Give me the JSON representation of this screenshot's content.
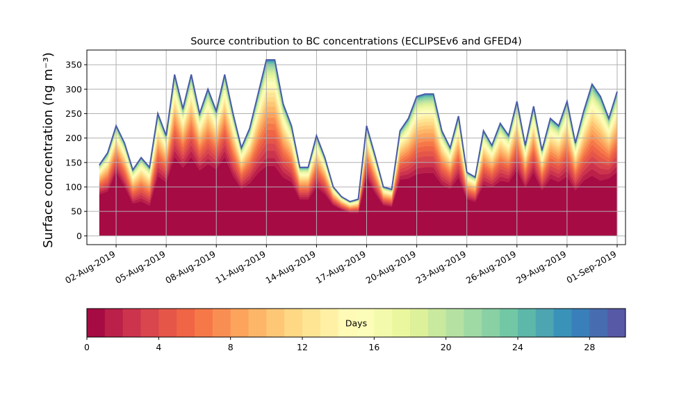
{
  "chart_data": {
    "type": "area",
    "stacked": true,
    "title": "Source contribution to BC concentrations (ECLIPSEv6 and GFED4)",
    "ylabel": "Surface concentration (ng m⁻³)",
    "xlabel": "",
    "ylim": [
      -18,
      380
    ],
    "yticks": [
      0,
      50,
      100,
      150,
      200,
      250,
      300,
      350
    ],
    "xlim": [
      "2019-07-31T06:00",
      "2019-09-01T12:00"
    ],
    "xticks": [
      "2019-08-02",
      "2019-08-05",
      "2019-08-08",
      "2019-08-11",
      "2019-08-14",
      "2019-08-17",
      "2019-08-20",
      "2019-08-23",
      "2019-08-26",
      "2019-08-29",
      "2019-09-01"
    ],
    "xtick_labels": [
      "02-Aug-2019",
      "05-Aug-2019",
      "08-Aug-2019",
      "11-Aug-2019",
      "14-Aug-2019",
      "17-Aug-2019",
      "20-Aug-2019",
      "23-Aug-2019",
      "26-Aug-2019",
      "29-Aug-2019",
      "01-Sep-2019"
    ],
    "grid": true,
    "x": [
      "2019-08-01T00:00",
      "2019-08-01T12:00",
      "2019-08-02T00:00",
      "2019-08-02T12:00",
      "2019-08-03T00:00",
      "2019-08-03T12:00",
      "2019-08-04T00:00",
      "2019-08-04T12:00",
      "2019-08-05T00:00",
      "2019-08-05T12:00",
      "2019-08-06T00:00",
      "2019-08-06T12:00",
      "2019-08-07T00:00",
      "2019-08-07T12:00",
      "2019-08-08T00:00",
      "2019-08-08T12:00",
      "2019-08-09T00:00",
      "2019-08-09T12:00",
      "2019-08-10T00:00",
      "2019-08-10T12:00",
      "2019-08-11T00:00",
      "2019-08-11T12:00",
      "2019-08-12T00:00",
      "2019-08-12T12:00",
      "2019-08-13T00:00",
      "2019-08-13T12:00",
      "2019-08-14T00:00",
      "2019-08-14T12:00",
      "2019-08-15T00:00",
      "2019-08-15T12:00",
      "2019-08-16T00:00",
      "2019-08-16T12:00",
      "2019-08-17T00:00",
      "2019-08-17T12:00",
      "2019-08-18T00:00",
      "2019-08-18T12:00",
      "2019-08-19T00:00",
      "2019-08-19T12:00",
      "2019-08-20T00:00",
      "2019-08-20T12:00",
      "2019-08-21T00:00",
      "2019-08-21T12:00",
      "2019-08-22T00:00",
      "2019-08-22T12:00",
      "2019-08-23T00:00",
      "2019-08-23T12:00",
      "2019-08-24T00:00",
      "2019-08-24T12:00",
      "2019-08-25T00:00",
      "2019-08-25T12:00",
      "2019-08-26T00:00",
      "2019-08-26T12:00",
      "2019-08-27T00:00",
      "2019-08-27T12:00",
      "2019-08-28T00:00",
      "2019-08-28T12:00",
      "2019-08-29T00:00",
      "2019-08-29T12:00",
      "2019-08-30T00:00",
      "2019-08-30T12:00",
      "2019-08-31T00:00",
      "2019-08-31T12:00",
      "2019-09-01T00:00"
    ],
    "total": [
      145,
      170,
      225,
      190,
      135,
      160,
      140,
      250,
      205,
      330,
      260,
      330,
      250,
      300,
      255,
      330,
      250,
      180,
      220,
      290,
      360,
      360,
      270,
      225,
      140,
      140,
      205,
      160,
      100,
      80,
      70,
      75,
      225,
      165,
      100,
      95,
      215,
      240,
      285,
      290,
      290,
      215,
      180,
      245,
      130,
      120,
      215,
      185,
      230,
      205,
      275,
      185,
      265,
      175,
      240,
      225,
      275,
      190,
      255,
      310,
      285,
      240,
      295
    ],
    "first_day_share": [
      0.55,
      0.5,
      0.55,
      0.5,
      0.45,
      0.4,
      0.4,
      0.45,
      0.5,
      0.45,
      0.5,
      0.45,
      0.5,
      0.45,
      0.5,
      0.45,
      0.45,
      0.5,
      0.45,
      0.4,
      0.35,
      0.35,
      0.4,
      0.45,
      0.5,
      0.5,
      0.45,
      0.5,
      0.6,
      0.65,
      0.65,
      0.6,
      0.5,
      0.5,
      0.6,
      0.6,
      0.5,
      0.45,
      0.4,
      0.4,
      0.4,
      0.45,
      0.5,
      0.45,
      0.55,
      0.55,
      0.45,
      0.5,
      0.45,
      0.5,
      0.45,
      0.5,
      0.45,
      0.5,
      0.45,
      0.45,
      0.4,
      0.45,
      0.4,
      0.35,
      0.35,
      0.45,
      0.4
    ],
    "bins": {
      "count": 30,
      "unit": "days",
      "colormap": [
        "#9e0142",
        "#d53e4f",
        "#f46d43",
        "#fdae61",
        "#fee08b",
        "#ffffbf",
        "#e6f598",
        "#abdda4",
        "#66c2a5",
        "#3288bd",
        "#5e4fa2"
      ]
    },
    "colorbar": {
      "label": "Days",
      "range": [
        0,
        30
      ],
      "ticks": [
        0,
        4,
        8,
        12,
        16,
        20,
        24,
        28
      ]
    }
  }
}
